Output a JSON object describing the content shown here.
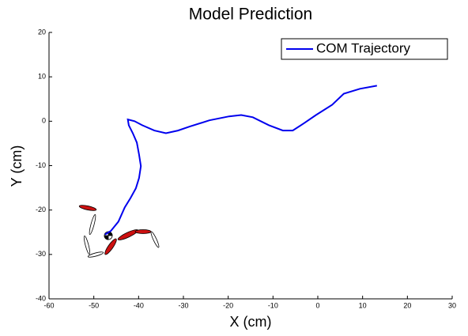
{
  "chart_data": {
    "type": "line",
    "title": "Model Prediction",
    "x_label": "X (cm)",
    "y_label": "Y (cm)",
    "series": [
      {
        "name": "COM Trajectory",
        "color": "#0000ee",
        "x": [
          -47.5,
          -46.2,
          -44.5,
          -43.1,
          -41.8,
          -40.6,
          -39.9,
          -39.5,
          -39.9,
          -40.4,
          -41.3,
          -42.2,
          -42.4,
          -40.9,
          -39.2,
          -36.5,
          -33.9,
          -31.2,
          -28.6,
          -24.2,
          -19.8,
          -17.1,
          -14.5,
          -10.9,
          -7.8,
          -5.6,
          -3.0,
          -0.4,
          3.2,
          5.8,
          9.4,
          13.2
        ],
        "values": [
          -25.5,
          -24.7,
          -22.6,
          -19.4,
          -17.3,
          -15.1,
          -12.8,
          -10.1,
          -7.5,
          -4.8,
          -2.7,
          -0.9,
          0.4,
          0,
          -0.9,
          -2.1,
          -2.7,
          -2.1,
          -1.2,
          0.2,
          1.1,
          1.4,
          0.9,
          -0.9,
          -2.1,
          -2.1,
          -0.4,
          1.4,
          3.7,
          6.2,
          7.3,
          8.0
        ]
      }
    ],
    "xlim": [
      -60,
      30
    ],
    "ylim": [
      -40,
      20
    ],
    "xticks": [
      -60,
      -50,
      -40,
      -30,
      -20,
      -10,
      0,
      10,
      20,
      30
    ],
    "yticks": [
      -40,
      -30,
      -20,
      -10,
      0,
      10,
      20
    ],
    "legend": "upper right"
  }
}
